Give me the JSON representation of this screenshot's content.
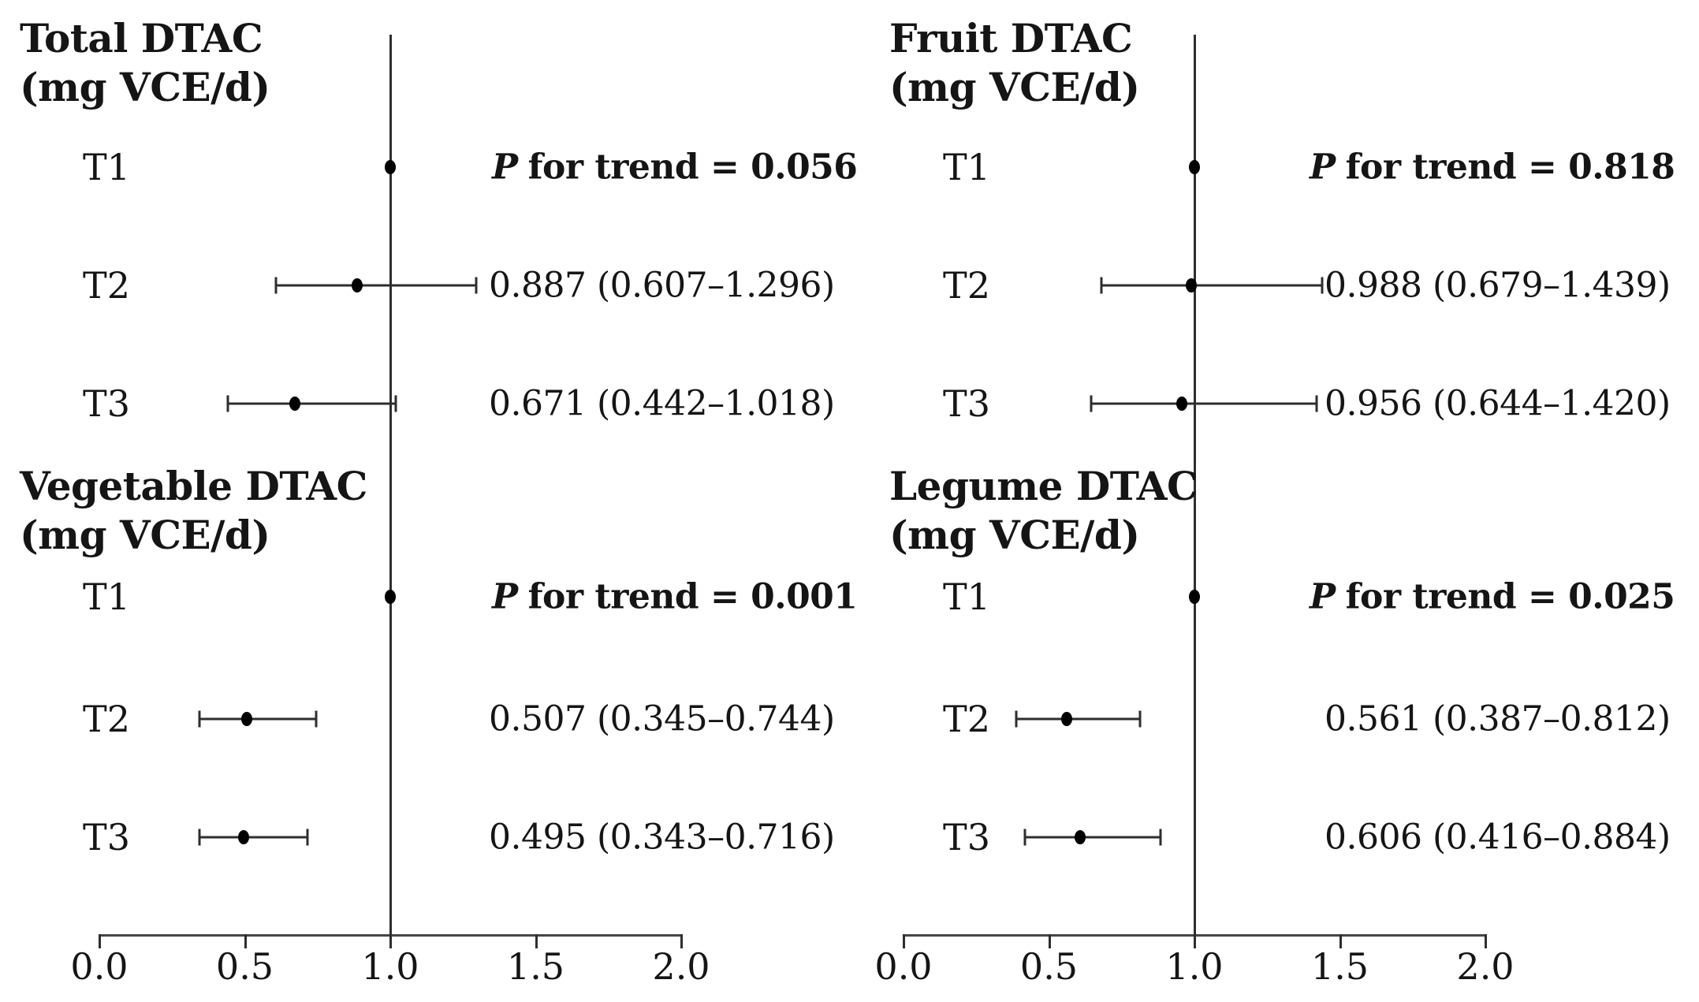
{
  "figure": {
    "background_color": "#ffffff",
    "text_color": "#151515",
    "line_color": "#2e2e2e",
    "marker_color": "#000000"
  },
  "chart_data": {
    "type": "scatter",
    "subtype": "forest-plot",
    "title": "",
    "xlabel": "",
    "xlim": [
      0.0,
      2.0
    ],
    "x_tick_values": [
      0.0,
      0.5,
      1.0,
      1.5,
      2.0
    ],
    "x_ticks": [
      "0.0",
      "0.5",
      "1.0",
      "1.5",
      "2.0"
    ],
    "reference_line_x": 1.0,
    "grid": false,
    "panels": [
      {
        "side": "left",
        "groups": [
          {
            "title_line1": "Total DTAC",
            "title_line2": "(mg VCE/d)",
            "p_label": "P",
            "p_text": "for trend = 0.056",
            "p_for_trend": 0.056,
            "rows": [
              {
                "label": "T1",
                "value": 1.0,
                "low": null,
                "high": null,
                "annotation": null
              },
              {
                "label": "T2",
                "value": 0.887,
                "low": 0.607,
                "high": 1.296,
                "annotation": "0.887 (0.607–1.296)"
              },
              {
                "label": "T3",
                "value": 0.671,
                "low": 0.442,
                "high": 1.018,
                "annotation": "0.671 (0.442–1.018)"
              }
            ]
          },
          {
            "title_line1": "Vegetable DTAC",
            "title_line2": "(mg VCE/d)",
            "p_label": "P",
            "p_text": "for trend = 0.001",
            "p_for_trend": 0.001,
            "rows": [
              {
                "label": "T1",
                "value": 1.0,
                "low": null,
                "high": null,
                "annotation": null
              },
              {
                "label": "T2",
                "value": 0.507,
                "low": 0.345,
                "high": 0.744,
                "annotation": "0.507 (0.345–0.744)"
              },
              {
                "label": "T3",
                "value": 0.495,
                "low": 0.343,
                "high": 0.716,
                "annotation": "0.495 (0.343–0.716)"
              }
            ]
          }
        ]
      },
      {
        "side": "right",
        "groups": [
          {
            "title_line1": "Fruit DTAC",
            "title_line2": "(mg VCE/d)",
            "p_label": "P",
            "p_text": "for trend = 0.818",
            "p_for_trend": 0.818,
            "rows": [
              {
                "label": "T1",
                "value": 1.0,
                "low": null,
                "high": null,
                "annotation": null
              },
              {
                "label": "T2",
                "value": 0.988,
                "low": 0.679,
                "high": 1.439,
                "annotation": "0.988 (0.679–1.439)"
              },
              {
                "label": "T3",
                "value": 0.956,
                "low": 0.644,
                "high": 1.42,
                "annotation": "0.956 (0.644–1.420)"
              }
            ]
          },
          {
            "title_line1": "Legume DTAC",
            "title_line2": "(mg VCE/d)",
            "p_label": "P",
            "p_text": "for trend = 0.025",
            "p_for_trend": 0.025,
            "rows": [
              {
                "label": "T1",
                "value": 1.0,
                "low": null,
                "high": null,
                "annotation": null
              },
              {
                "label": "T2",
                "value": 0.561,
                "low": 0.387,
                "high": 0.812,
                "annotation": "0.561 (0.387–0.812)"
              },
              {
                "label": "T3",
                "value": 0.606,
                "low": 0.416,
                "high": 0.884,
                "annotation": "0.606 (0.416–0.884)"
              }
            ]
          }
        ]
      }
    ]
  }
}
